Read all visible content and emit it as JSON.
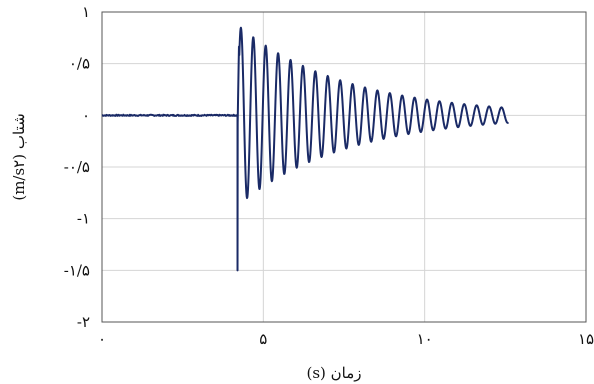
{
  "chart_data": {
    "type": "line",
    "xlabel": "زمان (s)",
    "ylabel": "شتاب (m/s۲)",
    "xlim": [
      0,
      15
    ],
    "ylim": [
      -2,
      1
    ],
    "xticks": [
      {
        "value": 0,
        "label": "۰"
      },
      {
        "value": 5,
        "label": "۵"
      },
      {
        "value": 10,
        "label": "۱۰"
      },
      {
        "value": 15,
        "label": "۱۵"
      }
    ],
    "yticks": [
      {
        "value": 1,
        "label": "۱"
      },
      {
        "value": 0.5,
        "label": "۰/۵"
      },
      {
        "value": 0,
        "label": "۰"
      },
      {
        "value": -0.5,
        "label": "-۰/۵"
      },
      {
        "value": -1,
        "label": "-۱"
      },
      {
        "value": -1.5,
        "label": "-۱/۵"
      },
      {
        "value": -2,
        "label": "-۲"
      }
    ],
    "grid": true,
    "series": [
      {
        "color": "#1a2a66",
        "baseline_until": 4.2,
        "onset": 4.2,
        "onset_min": -1.5,
        "peak_max": 0.85,
        "end_time": 12.6,
        "end_amplitude": 0.07,
        "frequency_hz": 2.6
      }
    ]
  }
}
